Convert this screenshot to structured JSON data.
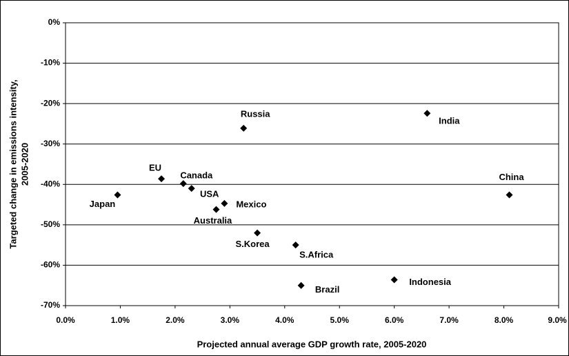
{
  "chart_data": {
    "type": "scatter",
    "xlabel": "Projected annual average GDP growth rate, 2005-2020",
    "ylabel": [
      "Targeted change in emissions intensity,",
      "2005-2020"
    ],
    "labels": [
      "Japan",
      "EU",
      "Canada",
      "USA",
      "Mexico",
      "Australia",
      "Russia",
      "S.Korea",
      "S.Africa",
      "Brazil",
      "Indonesia",
      "India",
      "China"
    ],
    "x": [
      0.95,
      1.75,
      2.15,
      2.3,
      2.9,
      2.75,
      3.25,
      3.5,
      4.2,
      4.3,
      6.0,
      6.6,
      8.1
    ],
    "values": [
      -42.6,
      -38.6,
      -39.8,
      -41,
      -44.7,
      -46.2,
      -26.1,
      -52,
      -55,
      -65,
      -63.6,
      -22.4,
      -42.6
    ],
    "color": "#000000",
    "xlim": [
      0,
      9
    ],
    "xticks": [
      {
        "value": 0,
        "label": "0.0%"
      },
      {
        "value": 1,
        "label": "1.0%"
      },
      {
        "value": 2,
        "label": "2.0%"
      },
      {
        "value": 3,
        "label": "3.0%"
      },
      {
        "value": 4,
        "label": "4.0%"
      },
      {
        "value": 5,
        "label": "5.0%"
      },
      {
        "value": 6,
        "label": "6.0%"
      },
      {
        "value": 7,
        "label": "7.0%"
      },
      {
        "value": 8,
        "label": "8.0%"
      },
      {
        "value": 9,
        "label": "9.0%"
      }
    ],
    "ylim": [
      -70,
      0
    ],
    "yticks": [
      {
        "value": 0,
        "label": "0%"
      },
      {
        "value": -10,
        "label": "-10%"
      },
      {
        "value": -20,
        "label": "-20%"
      },
      {
        "value": -30,
        "label": "-30%"
      },
      {
        "value": -40,
        "label": "-40%"
      },
      {
        "value": -50,
        "label": "-50%"
      },
      {
        "value": -60,
        "label": "-60%"
      },
      {
        "value": -70,
        "label": "-70%"
      }
    ],
    "grid": true
  }
}
